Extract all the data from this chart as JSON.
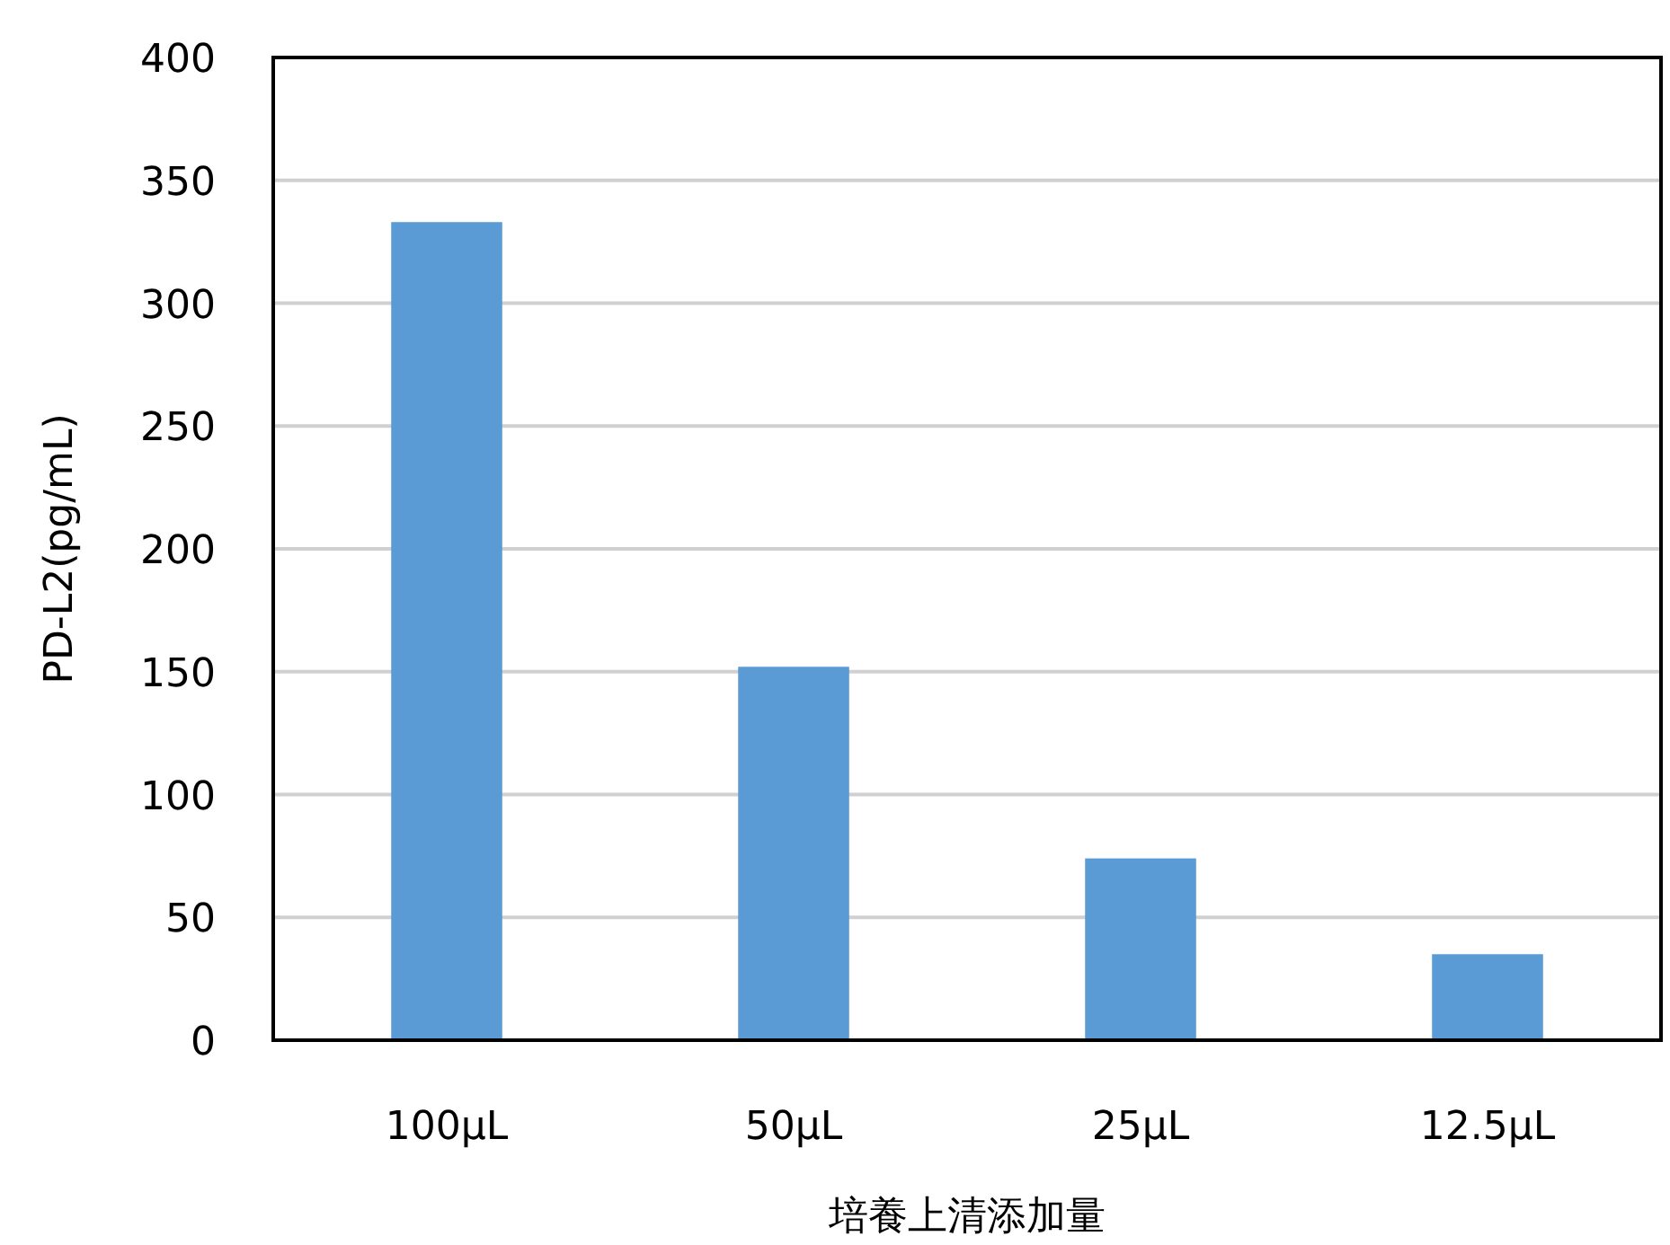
{
  "chart_data": {
    "type": "bar",
    "xlabel": "培養上清添加量",
    "ylabel": "PD-L2(pg/mL)",
    "categories": [
      "100µL",
      "50µL",
      "25µL",
      "12.5µL"
    ],
    "values": [
      333,
      152,
      74,
      35
    ],
    "color": "#5b9bd5",
    "ylim": [
      0,
      400
    ],
    "yticks": [
      0,
      50,
      100,
      150,
      200,
      250,
      300,
      350,
      400
    ],
    "grid": "y"
  }
}
